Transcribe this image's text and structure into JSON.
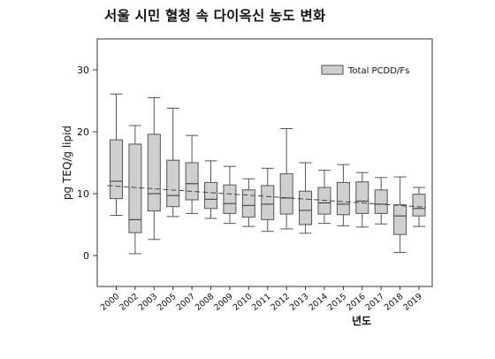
{
  "title": "서울 시민 혈청 속 다이옥신 농도 변화",
  "chart_data": {
    "type": "box",
    "title": "서울 시민 혈청 속 다이옥신 농도 변화",
    "xlabel": "년도",
    "ylabel": "pg TEQ/g lipid",
    "ylim": [
      -5,
      35
    ],
    "yticks": [
      0,
      10,
      20,
      30
    ],
    "grid": false,
    "legend_position": "top-right",
    "categories": [
      "2000",
      "2002",
      "2003",
      "2005",
      "2007",
      "2008",
      "2009",
      "2010",
      "2011",
      "2012",
      "2013",
      "2014",
      "2015",
      "2016",
      "2017",
      "2018",
      "2019"
    ],
    "series": [
      {
        "name": "Total PCDD/Fs",
        "color": "#cfcfcf",
        "boxes": [
          {
            "min": 6.5,
            "q1": 9.2,
            "median": 12.0,
            "q3": 18.7,
            "max": 26.1
          },
          {
            "min": 0.3,
            "q1": 3.7,
            "median": 5.8,
            "q3": 18.0,
            "max": 21.0
          },
          {
            "min": 2.6,
            "q1": 7.2,
            "median": 10.0,
            "q3": 19.6,
            "max": 25.5
          },
          {
            "min": 6.3,
            "q1": 7.9,
            "median": 9.7,
            "q3": 15.4,
            "max": 23.8
          },
          {
            "min": 6.8,
            "q1": 9.0,
            "median": 11.6,
            "q3": 15.0,
            "max": 19.4
          },
          {
            "min": 6.0,
            "q1": 7.6,
            "median": 9.1,
            "q3": 11.8,
            "max": 15.3
          },
          {
            "min": 5.2,
            "q1": 6.8,
            "median": 8.4,
            "q3": 11.4,
            "max": 14.4
          },
          {
            "min": 4.7,
            "q1": 6.2,
            "median": 8.1,
            "q3": 10.6,
            "max": 12.4
          },
          {
            "min": 3.9,
            "q1": 5.8,
            "median": 8.3,
            "q3": 11.3,
            "max": 14.1
          },
          {
            "min": 4.3,
            "q1": 6.7,
            "median": 9.3,
            "q3": 13.2,
            "max": 20.5
          },
          {
            "min": 3.6,
            "q1": 5.0,
            "median": 7.3,
            "q3": 10.4,
            "max": 15.0
          },
          {
            "min": 5.2,
            "q1": 6.7,
            "median": 8.5,
            "q3": 11.0,
            "max": 13.8
          },
          {
            "min": 4.8,
            "q1": 6.6,
            "median": 8.3,
            "q3": 11.8,
            "max": 14.7
          },
          {
            "min": 4.6,
            "q1": 6.8,
            "median": 8.8,
            "q3": 11.9,
            "max": 13.4
          },
          {
            "min": 5.1,
            "q1": 6.8,
            "median": 8.3,
            "q3": 10.6,
            "max": 12.6
          },
          {
            "min": 0.5,
            "q1": 3.4,
            "median": 6.4,
            "q3": 8.2,
            "max": 12.7
          },
          {
            "min": 4.7,
            "q1": 6.4,
            "median": 7.6,
            "q3": 9.9,
            "max": 11.0
          }
        ]
      }
    ],
    "trend_line": {
      "start": 11.3,
      "end": 7.8
    }
  }
}
